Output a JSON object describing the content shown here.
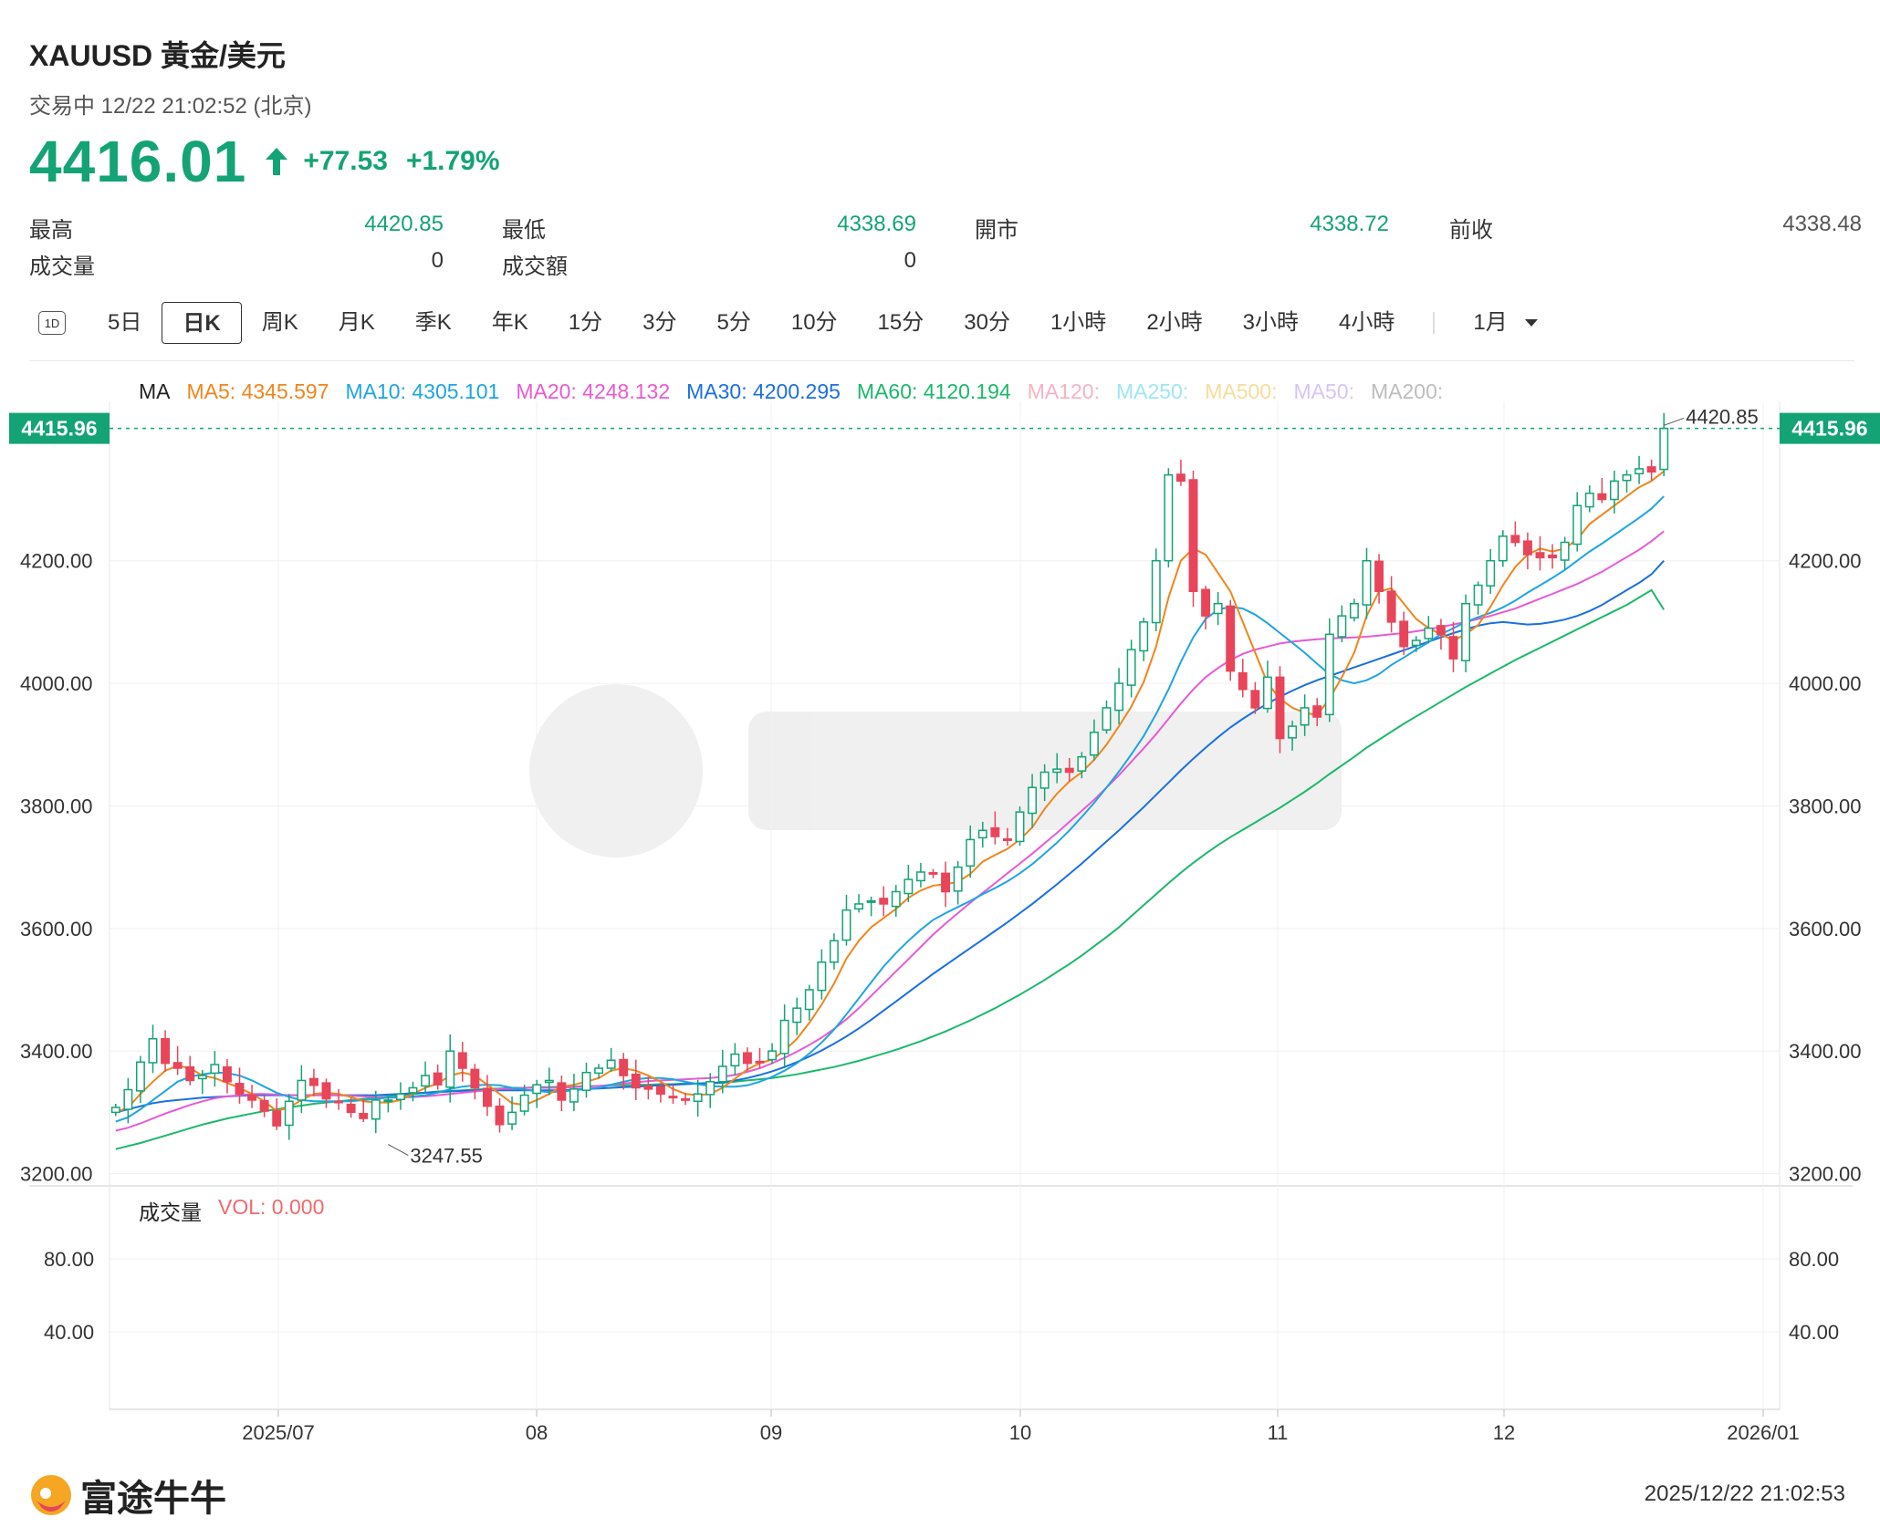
{
  "header": {
    "symbol": "XAUUSD  黃金/美元",
    "status": "交易中 12/22 21:02:52 (北京)",
    "price": "4416.01",
    "change": "+77.53",
    "change_pct": "+1.79%",
    "direction": "up",
    "up_color": "#14a374",
    "down_color": "#e8455a"
  },
  "stats": {
    "high_label": "最高",
    "high": "4420.85",
    "low_label": "最低",
    "low": "4338.69",
    "open_label": "開市",
    "open": "4338.72",
    "prev_label": "前收",
    "prev": "4338.48",
    "volume_label": "成交量",
    "volume": "0",
    "turnover_label": "成交額",
    "turnover": "0"
  },
  "tabs": [
    {
      "label": "1D"
    },
    {
      "label": "5日"
    },
    {
      "label": "日K",
      "active": true
    },
    {
      "label": "周K"
    },
    {
      "label": "月K"
    },
    {
      "label": "季K"
    },
    {
      "label": "年K"
    },
    {
      "label": "1分"
    },
    {
      "label": "3分"
    },
    {
      "label": "5分"
    },
    {
      "label": "10分"
    },
    {
      "label": "15分"
    },
    {
      "label": "30分"
    },
    {
      "label": "1小時"
    },
    {
      "label": "2小時"
    },
    {
      "label": "3小時"
    },
    {
      "label": "4小時"
    }
  ],
  "period_select": {
    "value": "1月",
    "icon": "caret-down-icon"
  },
  "ma_legend": [
    {
      "label": "MA",
      "color": "#222222"
    },
    {
      "label": "MA5: 4345.597",
      "color": "#f0851c"
    },
    {
      "label": "MA10: 4305.101",
      "color": "#1ea5e3"
    },
    {
      "label": "MA20: 4248.132",
      "color": "#e85ad4"
    },
    {
      "label": "MA30: 4200.295",
      "color": "#1b6fe0"
    },
    {
      "label": "MA60: 4120.194",
      "color": "#1db86b"
    },
    {
      "label": "MA120:",
      "color": "#f7b3c2"
    },
    {
      "label": "MA250:",
      "color": "#9de6f5"
    },
    {
      "label": "MA500:",
      "color": "#f7dc9a"
    },
    {
      "label": "MA50:",
      "color": "#d7c4f5"
    },
    {
      "label": "MA200:",
      "color": "#bdbdbd"
    }
  ],
  "volume_legend": {
    "label": "成交量",
    "value": "VOL: 0.000",
    "value_color": "#f06a6a"
  },
  "footer": {
    "brand": "富途牛牛",
    "timestamp": "2025/12/22 21:02:53"
  },
  "chart_data": {
    "type": "candlestick",
    "y_range": [
      3180,
      4460
    ],
    "y_ticks": [
      "4200.00",
      "4000.00",
      "3800.00",
      "3600.00",
      "3400.00",
      "3200.00"
    ],
    "x_ticks": [
      "2025/07",
      "08",
      "09",
      "10",
      "11",
      "12",
      "2026/01"
    ],
    "last_price_marker": "4415.96",
    "high_marker": "4420.85",
    "low_marker": "3247.55",
    "volume_ticks": [
      "80.00",
      "40.00"
    ],
    "ma_last": {
      "MA5": 4345.597,
      "MA10": 4305.101,
      "MA20": 4248.132,
      "MA30": 4200.295,
      "MA60": 4120.194
    },
    "closes": [
      3308,
      3337,
      3382,
      3420,
      3380,
      3372,
      3352,
      3360,
      3378,
      3350,
      3330,
      3320,
      3302,
      3278,
      3318,
      3352,
      3344,
      3322,
      3316,
      3300,
      3290,
      3320,
      3320,
      3330,
      3340,
      3360,
      3345,
      3400,
      3372,
      3340,
      3310,
      3280,
      3300,
      3328,
      3345,
      3352,
      3320,
      3338,
      3365,
      3372,
      3385,
      3360,
      3340,
      3338,
      3330,
      3325,
      3320,
      3330,
      3350,
      3375,
      3395,
      3380,
      3382,
      3400,
      3450,
      3470,
      3500,
      3545,
      3580,
      3630,
      3640,
      3645,
      3640,
      3660,
      3680,
      3692,
      3690,
      3660,
      3700,
      3745,
      3760,
      3750,
      3745,
      3790,
      3830,
      3855,
      3860,
      3855,
      3880,
      3920,
      3960,
      4000,
      4055,
      4100,
      4200,
      4340,
      4330,
      4150,
      4110,
      4130,
      4020,
      3990,
      3960,
      4010,
      3910,
      3930,
      3960,
      3945,
      4080,
      4110,
      4130,
      4200,
      4150,
      4100,
      4060,
      4070,
      4090,
      4080,
      4040,
      4130,
      4160,
      4200,
      4240,
      4230,
      4210,
      4205,
      4205,
      4230,
      4290,
      4310,
      4300,
      4330,
      4340,
      4350,
      4345,
      4416
    ],
    "ma5": [
      3300,
      3308,
      3330,
      3350,
      3368,
      3376,
      3372,
      3360,
      3356,
      3348,
      3340,
      3330,
      3318,
      3302,
      3308,
      3320,
      3330,
      3332,
      3330,
      3325,
      3318,
      3316,
      3316,
      3320,
      3330,
      3340,
      3347,
      3360,
      3365,
      3360,
      3345,
      3330,
      3315,
      3312,
      3320,
      3330,
      3342,
      3345,
      3350,
      3356,
      3368,
      3372,
      3368,
      3360,
      3350,
      3338,
      3330,
      3328,
      3330,
      3340,
      3355,
      3370,
      3380,
      3386,
      3401,
      3420,
      3446,
      3476,
      3510,
      3551,
      3580,
      3602,
      3617,
      3632,
      3650,
      3662,
      3670,
      3672,
      3676,
      3689,
      3709,
      3720,
      3730,
      3745,
      3765,
      3795,
      3820,
      3840,
      3855,
      3875,
      3900,
      3930,
      3962,
      4002,
      4060,
      4140,
      4200,
      4220,
      4210,
      4180,
      4150,
      4100,
      4050,
      4000,
      3975,
      3960,
      3952,
      3948,
      3975,
      4010,
      4050,
      4110,
      4150,
      4155,
      4130,
      4105,
      4090,
      4080,
      4070,
      4080,
      4095,
      4125,
      4160,
      4190,
      4210,
      4220,
      4215,
      4220,
      4235,
      4260,
      4275,
      4290,
      4305,
      4320,
      4330,
      4346
    ],
    "ma10": [
      3285,
      3292,
      3305,
      3320,
      3335,
      3350,
      3358,
      3362,
      3365,
      3364,
      3360,
      3352,
      3342,
      3332,
      3325,
      3320,
      3318,
      3318,
      3318,
      3318,
      3320,
      3322,
      3324,
      3325,
      3326,
      3328,
      3332,
      3338,
      3342,
      3344,
      3345,
      3344,
      3340,
      3337,
      3335,
      3333,
      3334,
      3336,
      3338,
      3340,
      3345,
      3350,
      3354,
      3356,
      3356,
      3354,
      3350,
      3346,
      3343,
      3342,
      3342,
      3344,
      3350,
      3358,
      3368,
      3380,
      3396,
      3414,
      3435,
      3460,
      3486,
      3512,
      3538,
      3560,
      3580,
      3598,
      3614,
      3625,
      3635,
      3645,
      3656,
      3666,
      3677,
      3690,
      3705,
      3722,
      3740,
      3760,
      3782,
      3805,
      3830,
      3856,
      3884,
      3914,
      3950,
      3990,
      4035,
      4075,
      4105,
      4120,
      4125,
      4122,
      4112,
      4098,
      4082,
      4066,
      4050,
      4032,
      4015,
      4005,
      4000,
      4005,
      4015,
      4030,
      4042,
      4055,
      4067,
      4080,
      4090,
      4100,
      4108,
      4115,
      4124,
      4135,
      4148,
      4160,
      4172,
      4185,
      4200,
      4215,
      4228,
      4242,
      4256,
      4270,
      4285,
      4305
    ],
    "ma20": [
      3270,
      3275,
      3282,
      3290,
      3298,
      3305,
      3312,
      3318,
      3323,
      3326,
      3328,
      3330,
      3330,
      3329,
      3328,
      3328,
      3328,
      3328,
      3328,
      3327,
      3326,
      3325,
      3324,
      3324,
      3325,
      3326,
      3328,
      3330,
      3332,
      3334,
      3336,
      3338,
      3339,
      3340,
      3340,
      3340,
      3340,
      3341,
      3342,
      3343,
      3345,
      3347,
      3349,
      3351,
      3352,
      3353,
      3354,
      3355,
      3356,
      3358,
      3361,
      3366,
      3372,
      3380,
      3389,
      3399,
      3410,
      3422,
      3436,
      3452,
      3470,
      3490,
      3510,
      3530,
      3550,
      3570,
      3590,
      3608,
      3625,
      3642,
      3658,
      3674,
      3690,
      3706,
      3722,
      3739,
      3756,
      3774,
      3792,
      3810,
      3830,
      3850,
      3872,
      3894,
      3917,
      3942,
      3967,
      3990,
      4010,
      4025,
      4038,
      4048,
      4055,
      4060,
      4065,
      4068,
      4070,
      4072,
      4073,
      4074,
      4075,
      4076,
      4078,
      4080,
      4082,
      4085,
      4088,
      4092,
      4096,
      4100,
      4105,
      4110,
      4116,
      4122,
      4130,
      4138,
      4146,
      4154,
      4162,
      4172,
      4182,
      4194,
      4206,
      4218,
      4232,
      4248
    ],
    "ma30": [
      3300,
      3305,
      3310,
      3315,
      3318,
      3320,
      3322,
      3324,
      3325,
      3326,
      3327,
      3328,
      3328,
      3328,
      3328,
      3328,
      3328,
      3328,
      3328,
      3328,
      3328,
      3328,
      3329,
      3330,
      3331,
      3332,
      3333,
      3334,
      3335,
      3336,
      3336,
      3336,
      3336,
      3336,
      3336,
      3336,
      3336,
      3337,
      3338,
      3339,
      3340,
      3341,
      3342,
      3343,
      3344,
      3345,
      3346,
      3347,
      3348,
      3349,
      3352,
      3356,
      3361,
      3367,
      3374,
      3382,
      3391,
      3401,
      3412,
      3424,
      3437,
      3451,
      3466,
      3481,
      3496,
      3511,
      3526,
      3540,
      3554,
      3568,
      3582,
      3596,
      3610,
      3625,
      3640,
      3656,
      3672,
      3689,
      3706,
      3724,
      3742,
      3760,
      3779,
      3798,
      3818,
      3838,
      3858,
      3877,
      3895,
      3912,
      3928,
      3942,
      3955,
      3967,
      3978,
      3988,
      3997,
      4005,
      4012,
      4019,
      4026,
      4033,
      4040,
      4047,
      4054,
      4061,
      4068,
      4075,
      4082,
      4088,
      4094,
      4098,
      4100,
      4098,
      4096,
      4097,
      4100,
      4104,
      4110,
      4118,
      4128,
      4140,
      4152,
      4164,
      4178,
      4200
    ],
    "ma60": [
      3240,
      3245,
      3250,
      3256,
      3262,
      3268,
      3274,
      3280,
      3285,
      3290,
      3294,
      3298,
      3302,
      3305,
      3308,
      3311,
      3314,
      3316,
      3318,
      3320,
      3322,
      3324,
      3326,
      3328,
      3330,
      3332,
      3334,
      3335,
      3336,
      3337,
      3338,
      3339,
      3340,
      3340,
      3341,
      3341,
      3342,
      3342,
      3343,
      3343,
      3344,
      3344,
      3345,
      3345,
      3346,
      3346,
      3347,
      3347,
      3348,
      3348,
      3350,
      3352,
      3354,
      3356,
      3359,
      3362,
      3366,
      3370,
      3374,
      3379,
      3384,
      3390,
      3396,
      3402,
      3409,
      3416,
      3424,
      3432,
      3441,
      3450,
      3460,
      3470,
      3481,
      3492,
      3504,
      3516,
      3529,
      3542,
      3556,
      3571,
      3586,
      3602,
      3620,
      3638,
      3656,
      3674,
      3691,
      3707,
      3722,
      3736,
      3749,
      3761,
      3773,
      3785,
      3797,
      3810,
      3823,
      3837,
      3852,
      3866,
      3880,
      3895,
      3908,
      3921,
      3934,
      3946,
      3958,
      3970,
      3982,
      3994,
      4005,
      4016,
      4027,
      4038,
      4048,
      4058,
      4068,
      4078,
      4088,
      4098,
      4108,
      4118,
      4128,
      4140,
      4152,
      4120
    ]
  }
}
